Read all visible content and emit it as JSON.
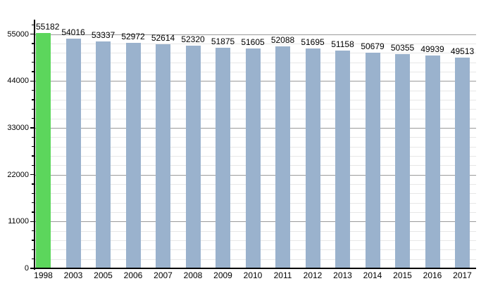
{
  "chart_data": {
    "type": "bar",
    "title": "",
    "xlabel": "",
    "ylabel": "",
    "categories": [
      "1998",
      "2003",
      "2005",
      "2006",
      "2007",
      "2008",
      "2009",
      "2010",
      "2011",
      "2012",
      "2013",
      "2014",
      "2015",
      "2016",
      "2017"
    ],
    "values": [
      55182,
      54016,
      53337,
      52972,
      52614,
      52320,
      51875,
      51605,
      52088,
      51695,
      51158,
      50679,
      50355,
      49939,
      49513
    ],
    "value_labels": [
      "55182",
      "54016",
      "53337",
      "52972",
      "52614",
      "52320",
      "51875",
      "51605",
      "52088",
      "51695",
      "51158",
      "50679",
      "50355",
      "49939",
      "49513"
    ],
    "y_tick_labels": [
      "0",
      "11000",
      "22000",
      "33000",
      "44000",
      "55000"
    ],
    "y_ticks": [
      0,
      11000,
      22000,
      33000,
      44000,
      55000
    ],
    "y_minor_step": 2200,
    "ylim": [
      0,
      58400
    ],
    "grid": true,
    "legend": "none",
    "highlight_index": 0,
    "colors": {
      "highlight_bar": "#5cd65c",
      "bar": "#9ab2cd",
      "major_grid": "#9a9a9a",
      "minor_grid": "#e7e7e7",
      "axis": "#000000",
      "text": "#000000",
      "background": "#ffffff"
    }
  }
}
